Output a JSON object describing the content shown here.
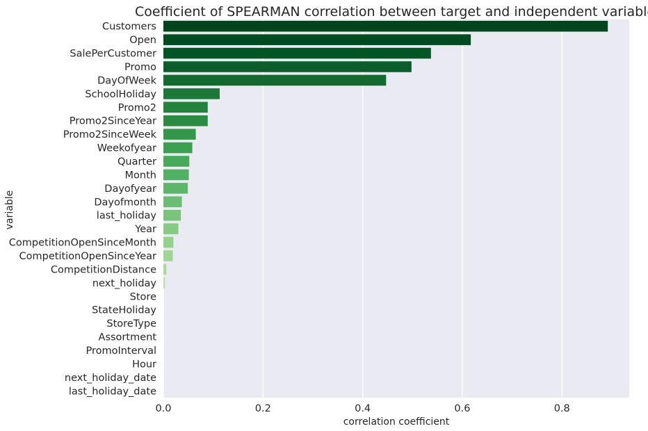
{
  "chart_data": {
    "type": "bar",
    "orientation": "horizontal",
    "title": "Coefficient of SPEARMAN correlation between target and independent variables",
    "xlabel": "correlation coefficient",
    "ylabel": "variable",
    "xlim": [
      0,
      0.935
    ],
    "xticks": [
      0.0,
      0.2,
      0.4,
      0.6,
      0.8
    ],
    "xtick_labels": [
      "0.0",
      "0.2",
      "0.4",
      "0.6",
      "0.8"
    ],
    "grid": true,
    "palette": "Greens_r",
    "background": "#eaeaf2",
    "categories": [
      "Customers",
      "Open",
      "SalePerCustomer",
      "Promo",
      "DayOfWeek",
      "SchoolHoliday",
      "Promo2",
      "Promo2SinceYear",
      "Promo2SinceWeek",
      "Weekofyear",
      "Quarter",
      "Month",
      "Dayofyear",
      "Dayofmonth",
      "last_holiday",
      "Year",
      "CompetitionOpenSinceMonth",
      "CompetitionOpenSinceYear",
      "CompetitionDistance",
      "next_holiday",
      "Store",
      "StateHoliday",
      "StoreType",
      "Assortment",
      "PromoInterval",
      "Hour",
      "next_holiday_date",
      "last_holiday_date"
    ],
    "values": [
      0.892,
      0.617,
      0.537,
      0.498,
      0.447,
      0.113,
      0.089,
      0.089,
      0.065,
      0.058,
      0.052,
      0.051,
      0.049,
      0.037,
      0.035,
      0.03,
      0.02,
      0.019,
      0.006,
      0.003,
      0.0,
      0.0,
      0.0,
      0.0,
      0.0,
      0.0,
      0.0,
      0.0
    ],
    "colors": [
      "#00441b",
      "#004c21",
      "#005525",
      "#0b5e2b",
      "#136a31",
      "#1c7837",
      "#23823b",
      "#2b8c41",
      "#339649",
      "#3c9f51",
      "#47a95a",
      "#52b064",
      "#5db76b",
      "#6bbd73",
      "#79c47c",
      "#86cb84",
      "#93d18c",
      "#a0d695",
      "#acdb9f",
      "#b8e1a9",
      "#c3e6b4",
      "#cdebbf",
      "#d6efca",
      "#dff2d6",
      "#e7f5e1",
      "#eef8eb",
      "#f3faf0",
      "#f7fcf5"
    ]
  }
}
